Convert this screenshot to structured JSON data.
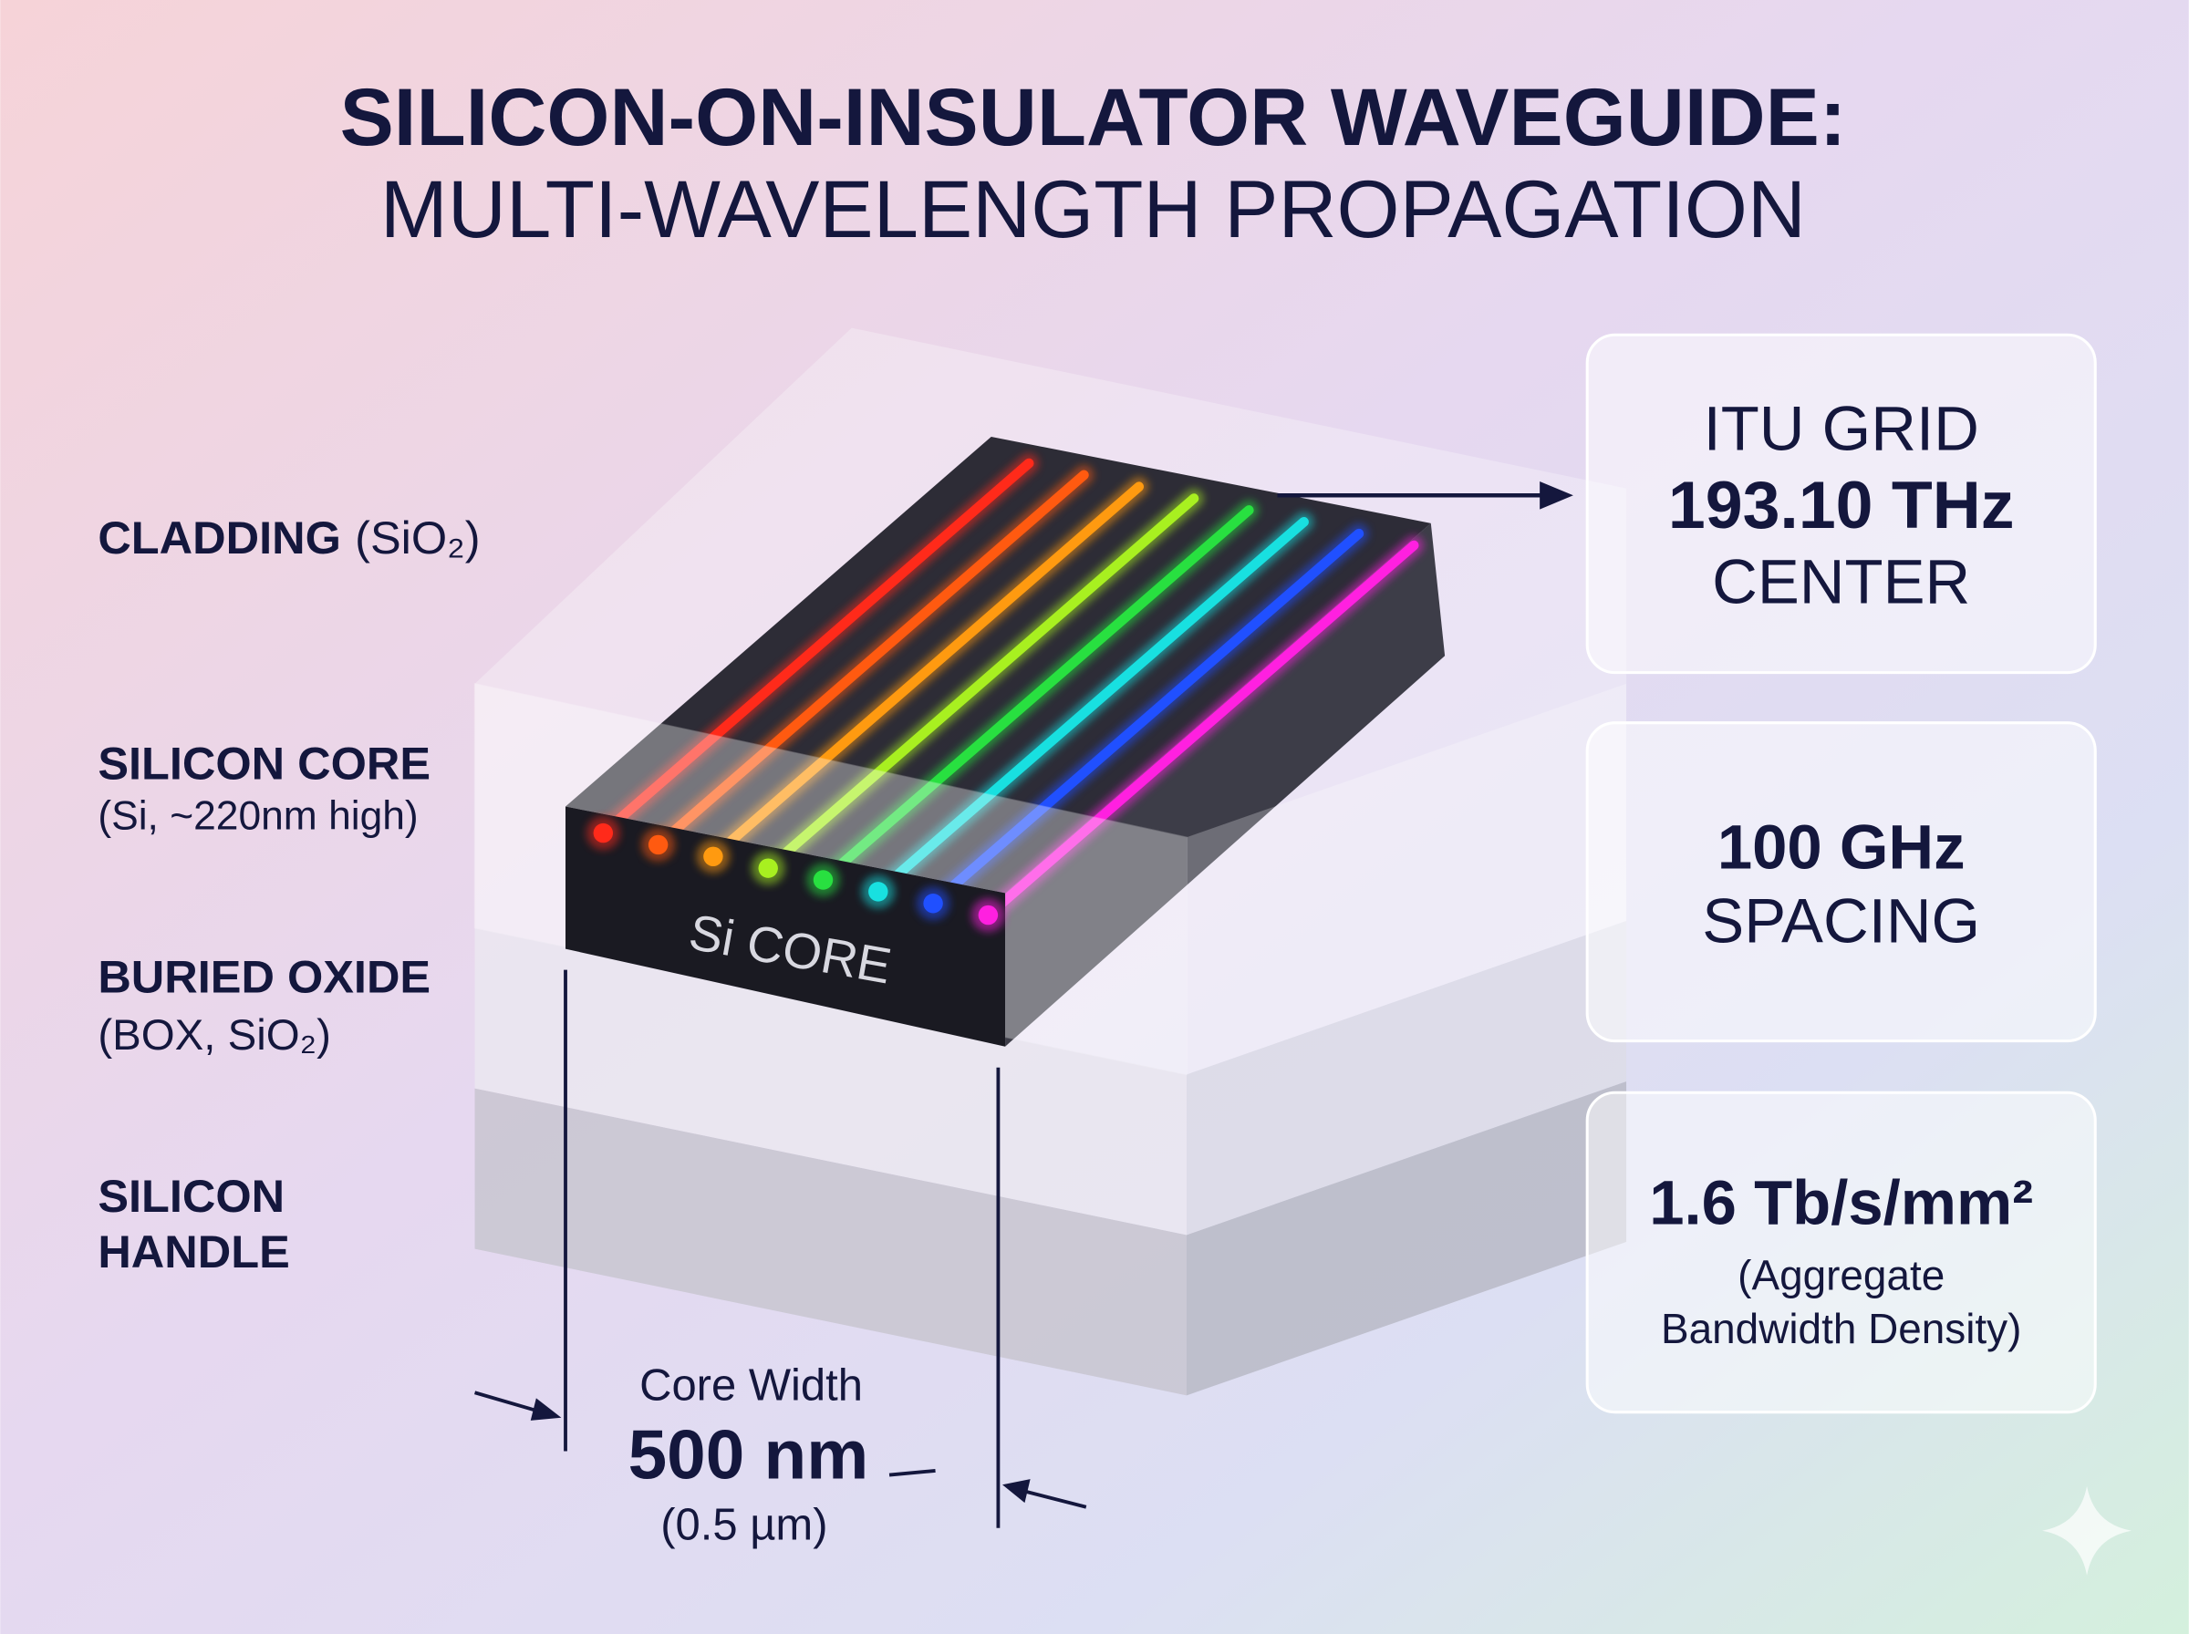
{
  "title": {
    "line1": "SILICON-ON-INSULATOR WAVEGUIDE:",
    "line2": "MULTI-WAVELENGTH PROPAGATION"
  },
  "layers": [
    {
      "name": "CLADDING",
      "detail": "(SiO₂)"
    },
    {
      "name": "SILICON CORE",
      "detail": "(Si, ~220nm high)"
    },
    {
      "name": "BURIED OXIDE",
      "detail": "(BOX, SiO₂)"
    },
    {
      "name": [
        "SILICON",
        "HANDLE"
      ]
    }
  ],
  "core_label": "Si CORE",
  "dimension": {
    "label": "Core Width",
    "value": "500 nm",
    "sub": "(0.5 µm)"
  },
  "cards": [
    {
      "label": "ITU GRID",
      "value": "193.10 THz",
      "caption": "CENTER"
    },
    {
      "value": "100 GHz",
      "caption": "SPACING"
    },
    {
      "value": "1.6 Tb/s/mm²",
      "note": [
        "(Aggregate",
        "Bandwidth Density)"
      ]
    }
  ]
}
